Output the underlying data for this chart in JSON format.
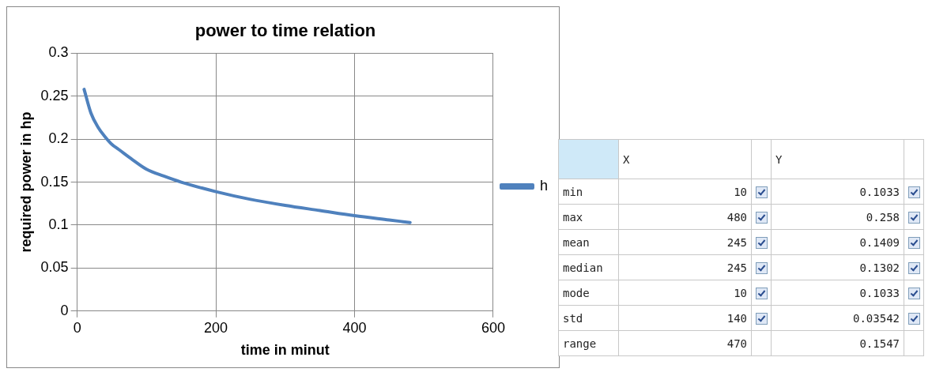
{
  "chart_data": [
    {
      "type": "line",
      "title": "power to time relation",
      "xlabel": "time in minut",
      "ylabel": "required power in hp",
      "x": [
        10,
        20,
        30,
        40,
        50,
        60,
        80,
        100,
        125,
        150,
        200,
        250,
        300,
        350,
        400,
        450,
        480
      ],
      "series": [
        {
          "name": "h",
          "color": "#4f81bd",
          "values": [
            0.258,
            0.23,
            0.214,
            0.203,
            0.194,
            0.188,
            0.176,
            0.165,
            0.157,
            0.15,
            0.139,
            0.13,
            0.123,
            0.117,
            0.111,
            0.106,
            0.103
          ]
        }
      ],
      "xlim": [
        0,
        600
      ],
      "xticks": [
        0,
        200,
        400,
        600
      ],
      "ylim": [
        0,
        0.3
      ],
      "yticks": [
        0,
        0.05,
        0.1,
        0.15,
        0.2,
        0.25,
        0.3
      ],
      "grid": true,
      "legend": "right",
      "marker": "none",
      "line_style": "solid"
    },
    {
      "type": "other",
      "data_labels": true,
      "categories": [
        "min",
        "max",
        "mean",
        "median",
        "mode",
        "std",
        "range"
      ],
      "series": [
        {
          "name": "X",
          "values": [
            10,
            480,
            245,
            245,
            10,
            140,
            470
          ]
        },
        {
          "name": "Y",
          "values": [
            0.1033,
            0.258,
            0.1409,
            0.1302,
            0.1033,
            0.03542,
            0.1547
          ]
        }
      ]
    }
  ]
}
